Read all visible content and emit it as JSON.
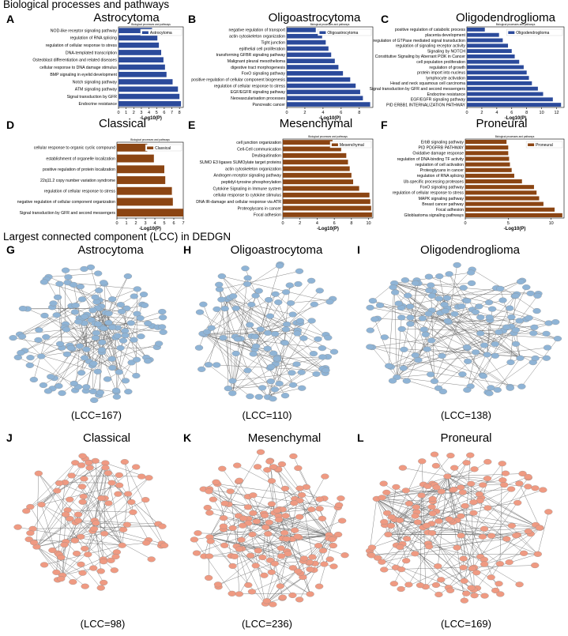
{
  "section_titles": {
    "bio": "Biological processes and pathways",
    "lcc": "Largest connected component (LCC) in DEDGN"
  },
  "colors": {
    "blue": "#2b4a9b",
    "brown": "#8b4513",
    "node_blue": "#8fb4d6",
    "node_red": "#ef9a82",
    "edge": "#555555"
  },
  "chart_data": [
    {
      "letter": "A",
      "title": "Astrocytoma",
      "type": "bar",
      "orientation": "horizontal",
      "small_title": "Biological processes and pathways",
      "legend": "Astrocytoma",
      "color": "#2b4a9b",
      "xlabel": "-Log10(P)",
      "xlim": [
        0,
        8.5
      ],
      "xticks": [
        0,
        1,
        2,
        3,
        4,
        5,
        6,
        7,
        8
      ],
      "categories": [
        "NOD-like receptor signaling pathway",
        "regulation of RNA splicing",
        "regulation of cellular response to stress",
        "DNA-templated transcription",
        "Osteoblast differentiation and related diseases",
        "cellular response to DNA damage stimulus",
        "BMP signaling in eyelid development",
        "Notch signaling pathway",
        "ATM signaling pathway",
        "Signal transduction by GFR",
        "Endocrine resistance"
      ],
      "values": [
        4.4,
        5.1,
        5.3,
        5.6,
        5.9,
        6.1,
        6.3,
        7.1,
        7.8,
        8.0,
        8.2
      ]
    },
    {
      "letter": "B",
      "title": "Oligoastrocytoma",
      "type": "bar",
      "orientation": "horizontal",
      "small_title": "Biological processes and pathways",
      "legend": "Oligoastrocytoma",
      "color": "#2b4a9b",
      "xlabel": "-Log10(P)",
      "xlim": [
        0,
        9.5
      ],
      "xticks": [
        0,
        2,
        4,
        6,
        8
      ],
      "categories": [
        "negative regulation of transport",
        "actin cytoskeleton organization",
        "Tight junction",
        "epithelial cell proliferation",
        "transforming GFBR signaling pathway",
        "Malignant pleural mesothelioma",
        "digestive tract morphogenesis",
        "FoxO signaling pathway",
        "positive regulation of cellular component biogenesis",
        "regulation of cellular response to stress",
        "EGF/EGFR signaling pathway",
        "Neovascularisation processes",
        "Pancreatic cancer"
      ],
      "values": [
        3.2,
        3.9,
        4.3,
        4.6,
        4.9,
        5.3,
        5.7,
        6.2,
        7.0,
        7.6,
        8.1,
        8.4,
        9.2
      ]
    },
    {
      "letter": "C",
      "title": "Oligodendroglioma",
      "type": "bar",
      "orientation": "horizontal",
      "small_title": "Biological processes and pathways",
      "legend": "Oligodendroglioma",
      "color": "#2b4a9b",
      "xlabel": "-Log10(P)",
      "xlim": [
        0,
        13
      ],
      "xticks": [
        0,
        2,
        4,
        6,
        8,
        10,
        12
      ],
      "categories": [
        "positive regulation of catabolic process",
        "placenta development",
        "regulation of GTPase mediated signal transduction",
        "regulation of signaling receptor activity",
        "Signaling by NOTCH",
        "Constitutive Signaling by Aberrant PI3K in Cancer",
        "cell population proliferation",
        "regulation of growth",
        "protein import into nucleus",
        "lymphocyte activation",
        "Head and neck squamous cell carcinoma",
        "Signal transduction by GFR and second messengers",
        "Endocrine resistance",
        "EGF/EGFR signaling pathway",
        "PID ERBB1 INTERNALIZATION PATHWAY"
      ],
      "values": [
        2.4,
        4.3,
        4.8,
        5.5,
        6.0,
        6.4,
        7.0,
        7.6,
        8.0,
        8.3,
        8.7,
        9.5,
        10.2,
        11.5,
        12.6
      ]
    },
    {
      "letter": "D",
      "title": "Classical",
      "type": "bar",
      "orientation": "horizontal",
      "small_title": "Biological processes and pathways",
      "legend": "Classical",
      "color": "#8b4513",
      "xlabel": "-Log10(P)",
      "xlim": [
        0,
        7
      ],
      "xticks": [
        0,
        1,
        2,
        3,
        4,
        5,
        6,
        7
      ],
      "categories": [
        "cellular response to organic cyclic compound",
        "establishment of organelle localization",
        "positive regulation of protein localization",
        "22q11.2 copy number variation syndrome",
        "regulation of cellular response to stress",
        "negative regulation of cellular component organization",
        "Signal transduction by GFR and second messengers"
      ],
      "values": [
        3.2,
        3.9,
        5.0,
        5.1,
        5.8,
        5.9,
        7.0
      ]
    },
    {
      "letter": "E",
      "title": "Mesenchymal",
      "type": "bar",
      "orientation": "horizontal",
      "small_title": "Biological processes and pathways",
      "legend": "Mesenchymal",
      "color": "#8b4513",
      "xlabel": "-Log10(P)",
      "xlim": [
        0,
        10.5
      ],
      "xticks": [
        0,
        2,
        4,
        6,
        8,
        10
      ],
      "categories": [
        "cell junction organization",
        "Cell-Cell communication",
        "Deubiquitination",
        "SUMO E3 ligases SUMOylate target proteins",
        "actin cytoskeleton organization",
        "Androgen receptor signaling pathway",
        "peptidyl-tyrosine phosphorylation",
        "Cytokine Signaling in Immune system",
        "cellular response to cytokine stimulus",
        "DNA IR-damage and cellular response via ATR",
        "Proteoglycans in cancer",
        "Focal adhesion"
      ],
      "values": [
        5.8,
        6.8,
        7.4,
        7.6,
        7.8,
        8.0,
        8.2,
        8.9,
        10.1,
        10.2,
        10.3,
        10.4
      ]
    },
    {
      "letter": "F",
      "title": "Proneural",
      "type": "bar",
      "orientation": "horizontal",
      "small_title": "Biological processes and pathways",
      "legend": "Proneural",
      "color": "#8b4513",
      "xlabel": "-Log10(P)",
      "xlim": [
        0,
        11.5
      ],
      "xticks": [
        0,
        5,
        10
      ],
      "categories": [
        "ErbB signaling pathway",
        "PID PDGFRB PATHWAY",
        "Oxidative damage response",
        "regulation of DNA-binding TF activity",
        "regulation of cell activation",
        "Proteoglycans in cancer",
        "regulation of RNA splicing",
        "Ub-specific processing proteases",
        "FoxO signaling pathway",
        "regulation of cellular response to stress",
        "MAPK signaling pathway",
        "Breast cancer pathway",
        "Focal adhesion",
        "Glioblastoma signaling pathways"
      ],
      "values": [
        4.8,
        5.0,
        5.0,
        5.1,
        5.2,
        5.4,
        5.7,
        6.6,
        8.0,
        8.3,
        8.6,
        9.1,
        10.4,
        11.3
      ]
    }
  ],
  "networks": [
    {
      "letter": "G",
      "title": "Astrocytoma",
      "lcc_label": "(LCC=167)",
      "lcc": 167,
      "color": "#8fb4d6"
    },
    {
      "letter": "H",
      "title": "Oligoastrocytoma",
      "lcc_label": "(LCC=110)",
      "lcc": 110,
      "color": "#8fb4d6"
    },
    {
      "letter": "I",
      "title": "Oligodendroglioma",
      "lcc_label": "(LCC=138)",
      "lcc": 138,
      "color": "#8fb4d6"
    },
    {
      "letter": "J",
      "title": "Classical",
      "lcc_label": "(LCC=98)",
      "lcc": 98,
      "color": "#ef9a82"
    },
    {
      "letter": "K",
      "title": "Mesenchymal",
      "lcc_label": "(LCC=236)",
      "lcc": 236,
      "color": "#ef9a82"
    },
    {
      "letter": "L",
      "title": "Proneural",
      "lcc_label": "(LCC=169)",
      "lcc": 169,
      "color": "#ef9a82"
    }
  ]
}
